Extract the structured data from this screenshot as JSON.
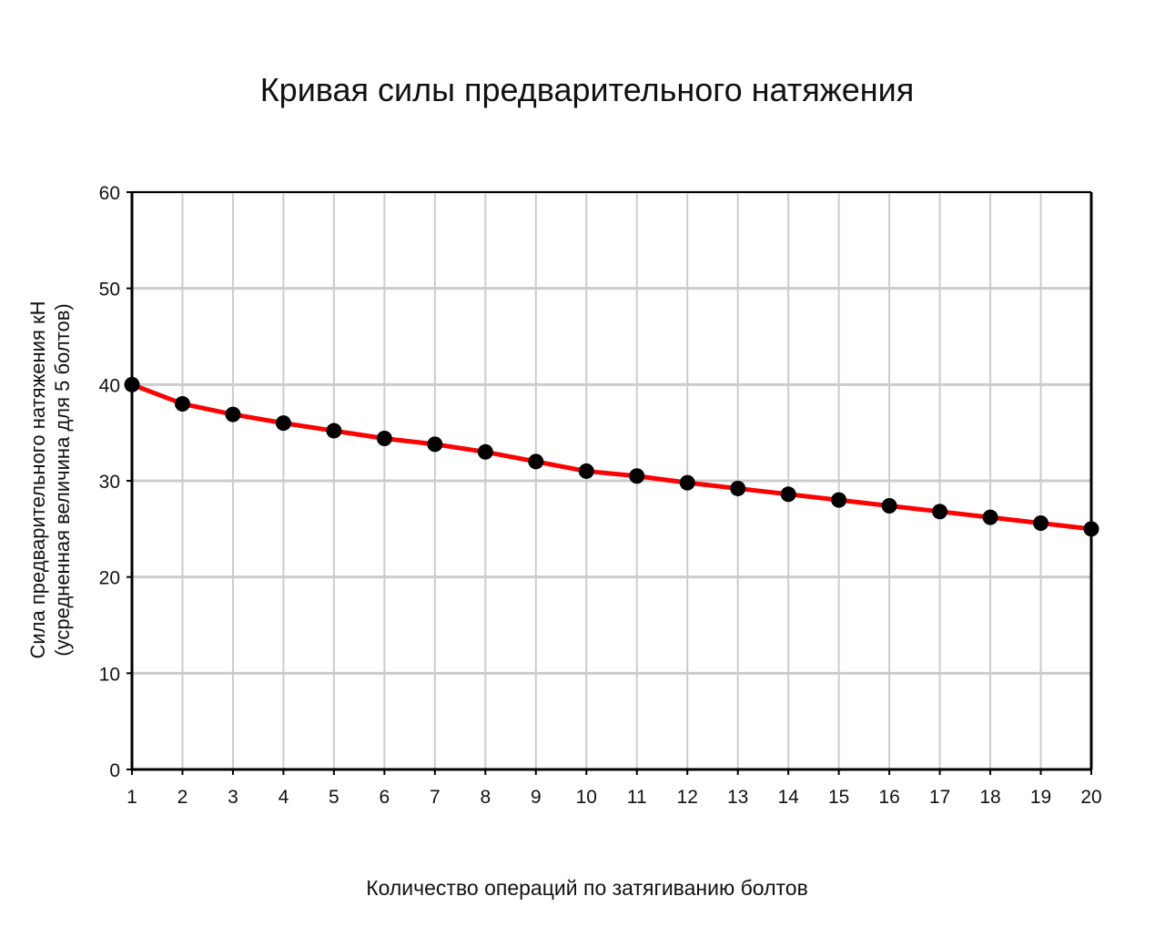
{
  "chart_data": {
    "type": "line",
    "title": "Кривая силы предварительного натяжения",
    "xlabel": "Количество операций по затягиванию болтов",
    "ylabel_lines": [
      "Сила предварительного натяжения кН",
      "(усредненная величина для 5 болтов)"
    ],
    "x": [
      1,
      2,
      3,
      4,
      5,
      6,
      7,
      8,
      9,
      10,
      11,
      12,
      13,
      14,
      15,
      16,
      17,
      18,
      19,
      20
    ],
    "x_tick_labels": [
      "1",
      "2",
      "3",
      "4",
      "5",
      "6",
      "7",
      "8",
      "9",
      "10",
      "11",
      "12",
      "13",
      "14",
      "15",
      "16",
      "17",
      "18",
      "19",
      "20"
    ],
    "series": [
      {
        "values": [
          40.0,
          38.0,
          36.9,
          36.0,
          35.2,
          34.4,
          33.8,
          33.0,
          32.0,
          31.0,
          30.5,
          29.8,
          29.2,
          28.6,
          28.0,
          27.4,
          26.8,
          26.2,
          25.6,
          25.0
        ],
        "color": "#ff0000",
        "marker_color": "#000000"
      }
    ],
    "xlim": [
      1,
      20
    ],
    "ylim": [
      0,
      60
    ],
    "y_ticks": [
      0,
      10,
      20,
      30,
      40,
      50,
      60
    ],
    "y_tick_labels": [
      "0",
      "10",
      "20",
      "30",
      "40",
      "50",
      "60"
    ],
    "grid": true,
    "grid_color": "#cccccc",
    "axis_color": "#000000",
    "legend": "none"
  }
}
